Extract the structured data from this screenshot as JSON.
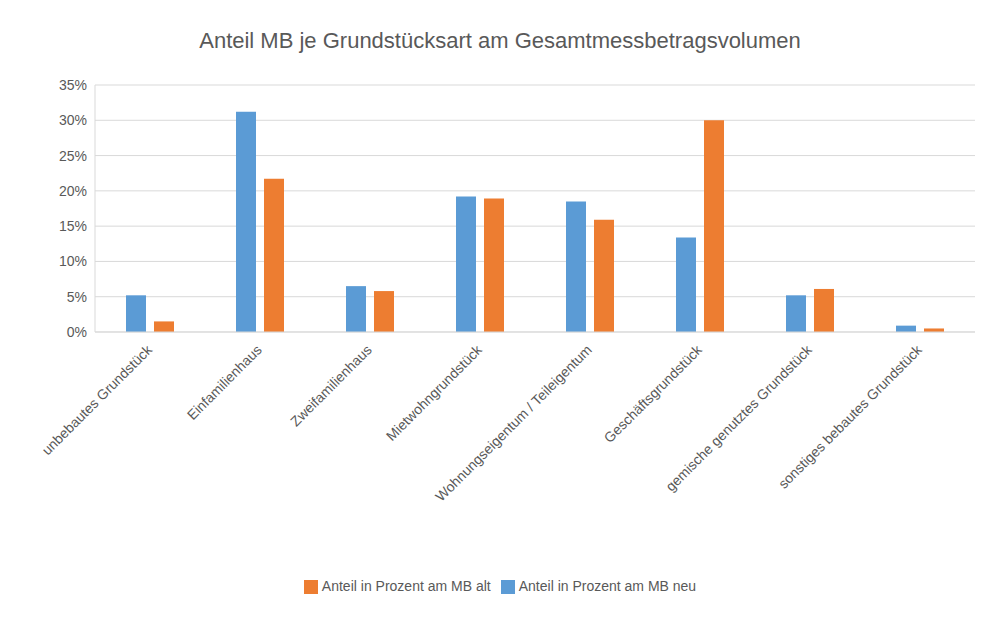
{
  "chart_data": {
    "type": "bar",
    "title": "Anteil MB je Grundstücksart am Gesamtmessbetragsvolumen",
    "categories": [
      "unbebautes Grundstück",
      "Einfamilienhaus",
      "Zweifamilienhaus",
      "Mietwohngrundstück",
      "Wohnungseigentum / Teileigentum",
      "Geschäftsgrundstück",
      "gemische genutztes Grundstück",
      "sonstiges bebautes Grundstück"
    ],
    "series": [
      {
        "name": "Anteil in Prozent am MB neu",
        "color": "#5b9bd5",
        "values": [
          5.2,
          31.2,
          6.5,
          19.2,
          18.5,
          13.4,
          5.2,
          0.9
        ]
      },
      {
        "name": "Anteil in Prozent am MB alt",
        "color": "#ed7d31",
        "values": [
          1.5,
          21.7,
          5.8,
          18.9,
          15.9,
          30.0,
          6.1,
          0.5
        ]
      }
    ],
    "ylim": [
      0,
      35
    ],
    "yticks": [
      {
        "value": 0,
        "label": "0%"
      },
      {
        "value": 5,
        "label": "5%"
      },
      {
        "value": 10,
        "label": "10%"
      },
      {
        "value": 15,
        "label": "15%"
      },
      {
        "value": 20,
        "label": "20%"
      },
      {
        "value": 25,
        "label": "25%"
      },
      {
        "value": 30,
        "label": "30%"
      },
      {
        "value": 35,
        "label": "35%"
      }
    ],
    "grid": true,
    "legend": "bottom"
  }
}
